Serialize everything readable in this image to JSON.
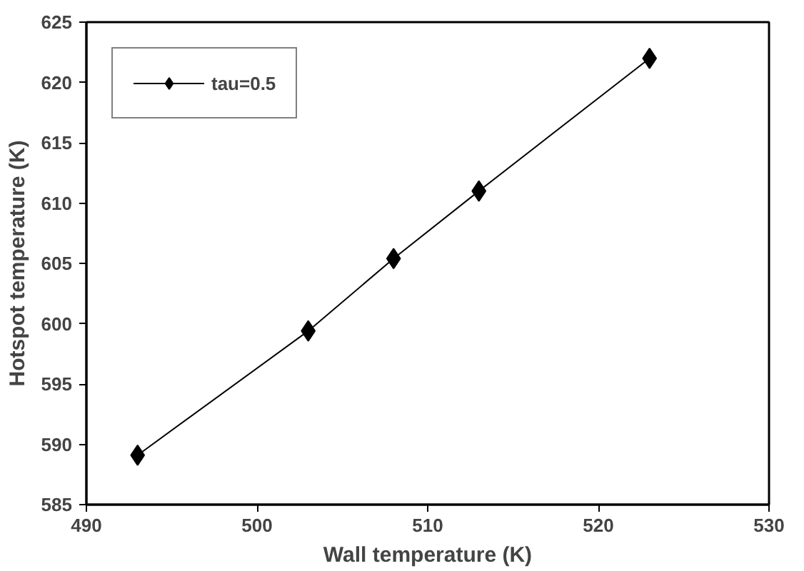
{
  "chart_data": {
    "type": "line",
    "xlabel": "Wall temperature (K)",
    "ylabel": "Hotspot temperature (K)",
    "x": [
      493,
      503,
      508,
      513,
      523
    ],
    "series": [
      {
        "name": "tau=0.5",
        "color": "#000000",
        "values": [
          589.1,
          599.4,
          605.4,
          611.0,
          622.0
        ]
      }
    ],
    "xlim": [
      490,
      530
    ],
    "xticks": [
      490,
      500,
      510,
      520,
      530
    ],
    "ylim": [
      585,
      625
    ],
    "yticks": [
      585,
      590,
      595,
      600,
      605,
      610,
      615,
      620,
      625
    ],
    "marker": "diamond",
    "line_style": "solid",
    "legend": "top left",
    "grid": false
  }
}
